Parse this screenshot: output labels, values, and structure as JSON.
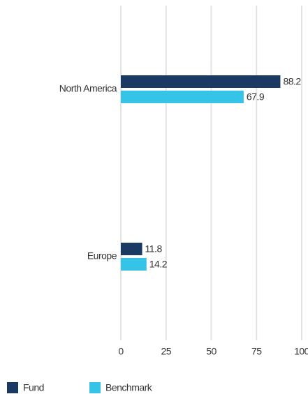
{
  "chart_data": {
    "type": "bar",
    "orientation": "horizontal",
    "categories": [
      "North America",
      "Europe"
    ],
    "series": [
      {
        "name": "Fund",
        "color": "#1b3a63",
        "values": [
          88.2,
          11.8
        ]
      },
      {
        "name": "Benchmark",
        "color": "#35c3e8",
        "values": [
          67.9,
          14.2
        ]
      }
    ],
    "xlim": [
      0,
      100
    ],
    "xticks": [
      0,
      25,
      50,
      75,
      100
    ],
    "grid": true,
    "legend": "bottom-left"
  }
}
